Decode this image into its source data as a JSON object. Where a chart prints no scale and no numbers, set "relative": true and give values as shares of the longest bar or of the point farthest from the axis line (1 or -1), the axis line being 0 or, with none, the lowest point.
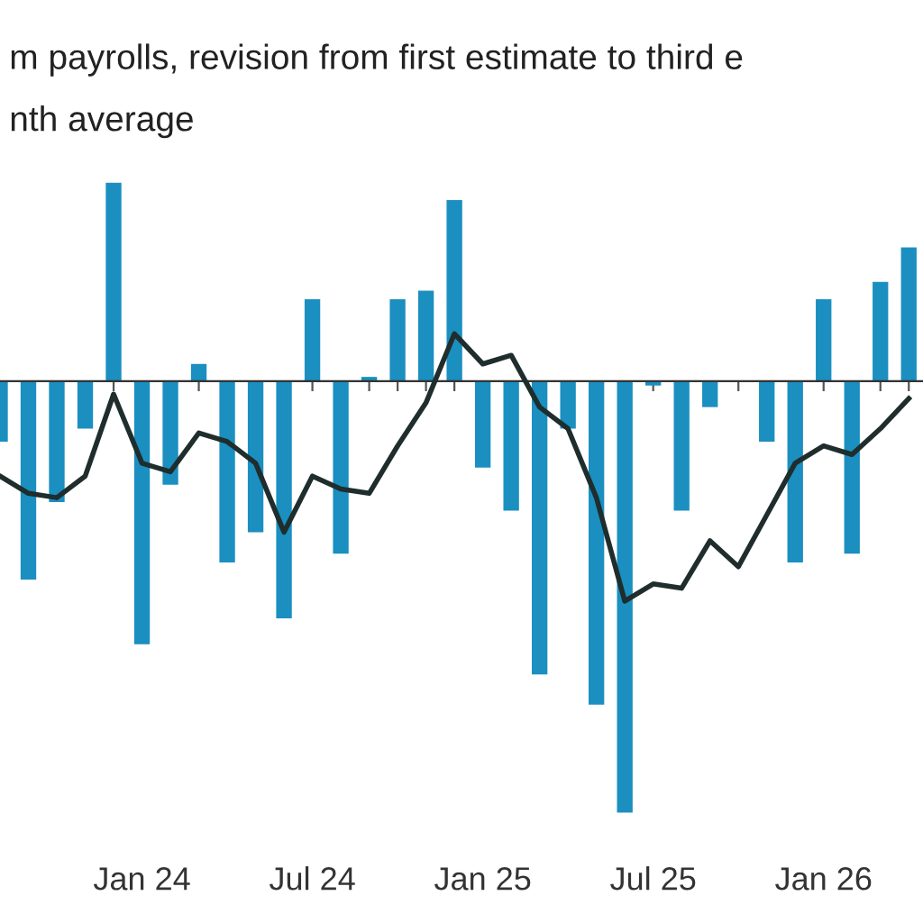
{
  "chart_data": {
    "type": "bar",
    "title": "m payrolls, revision from first estimate to third e",
    "subtitle": "nth average",
    "relative": true,
    "categories": [
      null,
      null,
      null,
      null,
      null,
      "Jan 24",
      null,
      null,
      null,
      null,
      null,
      "Jul 24",
      null,
      null,
      null,
      null,
      null,
      "Jan 25",
      null,
      null,
      null,
      null,
      null,
      "Jul 25",
      null,
      null,
      null,
      null,
      null,
      "Jan 26",
      null,
      null,
      null
    ],
    "series": [
      {
        "color": "#1a8fc0",
        "values": [
          -0.14,
          -0.46,
          -0.28,
          -0.11,
          0.46,
          -0.61,
          -0.24,
          0.04,
          -0.42,
          -0.35,
          -0.55,
          0.19,
          -0.4,
          0.01,
          0.19,
          0.21,
          0.42,
          -0.2,
          -0.3,
          -0.68,
          -0.11,
          -0.75,
          -1,
          -0.01,
          -0.3,
          -0.06,
          0,
          -0.14,
          -0.42,
          0.19,
          -0.4,
          0.23,
          0.31
        ]
      },
      {
        "type": "line",
        "color": "#1f2d2d",
        "values": [
          -0.22,
          -0.26,
          -0.27,
          -0.22,
          -0.03,
          -0.19,
          -0.21,
          -0.12,
          -0.14,
          -0.19,
          -0.35,
          -0.22,
          -0.25,
          -0.26,
          -0.15,
          -0.05,
          0.11,
          0.04,
          0.06,
          -0.06,
          -0.11,
          -0.27,
          -0.51,
          -0.47,
          -0.48,
          -0.37,
          -0.43,
          -0.31,
          -0.19,
          -0.15,
          -0.17,
          -0.11,
          -0.04
        ]
      }
    ],
    "marker": "none",
    "line_style": "solid"
  }
}
